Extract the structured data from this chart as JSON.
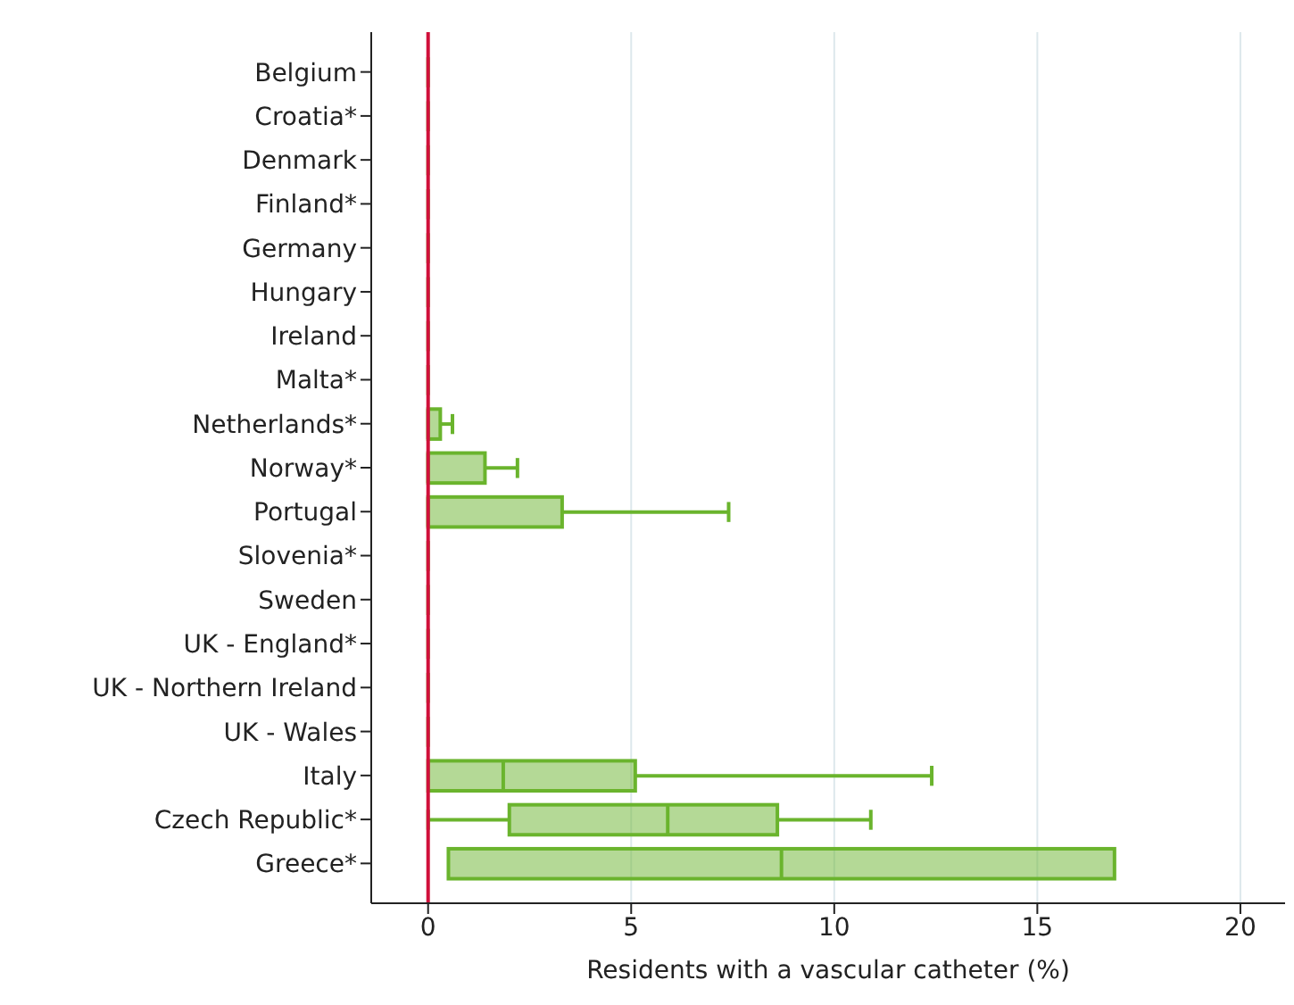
{
  "chart_data": {
    "type": "box",
    "orientation": "horizontal",
    "xlabel": "Residents with a vascular catheter (%)",
    "categories": [
      "Belgium",
      "Croatia*",
      "Denmark",
      "Finland*",
      "Germany",
      "Hungary",
      "Ireland",
      "Malta*",
      "Netherlands*",
      "Norway*",
      "Portugal",
      "Slovenia*",
      "Sweden",
      "UK - England*",
      "UK - Northern Ireland",
      "UK - Wales",
      "Italy",
      "Czech Republic*",
      "Greece*"
    ],
    "boxes": [
      {
        "low": 0,
        "q1": 0,
        "median": 0,
        "q3": 0,
        "high": 0
      },
      {
        "low": 0,
        "q1": 0,
        "median": 0,
        "q3": 0,
        "high": 0
      },
      {
        "low": 0,
        "q1": 0,
        "median": 0,
        "q3": 0,
        "high": 0
      },
      {
        "low": 0,
        "q1": 0,
        "median": 0,
        "q3": 0,
        "high": 0
      },
      {
        "low": 0,
        "q1": 0,
        "median": 0,
        "q3": 0,
        "high": 0
      },
      {
        "low": 0,
        "q1": 0,
        "median": 0,
        "q3": 0,
        "high": 0
      },
      {
        "low": 0,
        "q1": 0,
        "median": 0,
        "q3": 0,
        "high": 0
      },
      {
        "low": 0,
        "q1": 0,
        "median": 0,
        "q3": 0,
        "high": 0
      },
      {
        "low": 0,
        "q1": 0,
        "median": 0,
        "q3": 0.3,
        "high": 0.6
      },
      {
        "low": 0,
        "q1": 0,
        "median": 0,
        "q3": 1.4,
        "high": 2.2
      },
      {
        "low": 0,
        "q1": 0,
        "median": 0,
        "q3": 3.3,
        "high": 7.4
      },
      {
        "low": 0,
        "q1": 0,
        "median": 0,
        "q3": 0,
        "high": 0
      },
      {
        "low": 0,
        "q1": 0,
        "median": 0,
        "q3": 0,
        "high": 0
      },
      {
        "low": 0,
        "q1": 0,
        "median": 0,
        "q3": 0,
        "high": 0
      },
      {
        "low": 0,
        "q1": 0,
        "median": 0,
        "q3": 0,
        "high": 0
      },
      {
        "low": 0,
        "q1": 0,
        "median": 0,
        "q3": 0,
        "high": 0
      },
      {
        "low": 0,
        "q1": 0,
        "median": 1.85,
        "q3": 5.1,
        "high": 12.4
      },
      {
        "low": 0,
        "q1": 2.0,
        "median": 5.9,
        "q3": 8.6,
        "high": 10.9
      },
      {
        "low": 0.5,
        "q1": 0.5,
        "median": 8.7,
        "q3": 16.9,
        "high": 16.9
      }
    ],
    "color": "#6ab42d",
    "xlim": [
      -1.4,
      21.1
    ],
    "xticks": [
      0,
      5,
      10,
      15,
      20
    ],
    "grid": "x",
    "ref_lines": [
      {
        "axis": "x",
        "value": 0,
        "color": "#d0103a"
      }
    ]
  }
}
